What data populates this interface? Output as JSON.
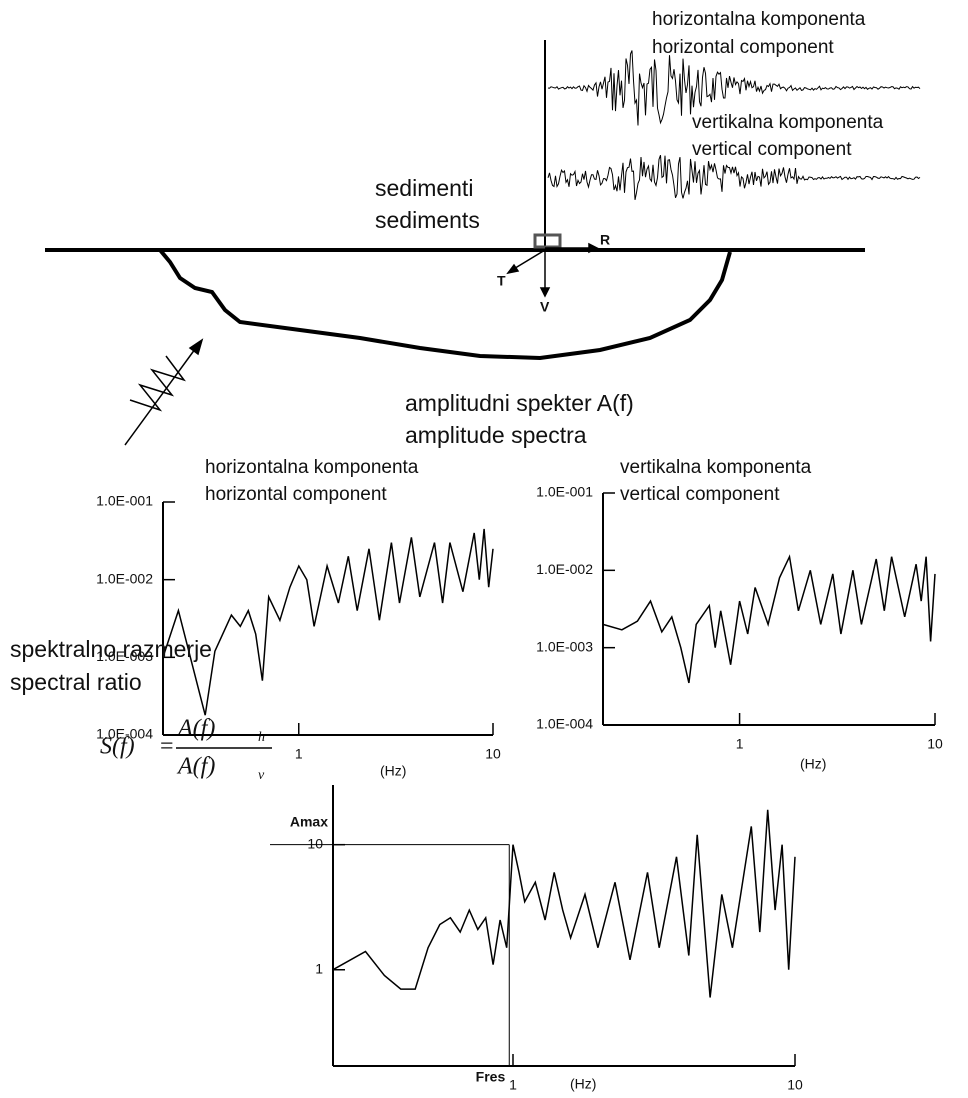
{
  "diagram": {
    "seismogram_labels": [
      [
        "horizontalna komponenta",
        "horizontal component"
      ],
      [
        "vertikalna komponenta",
        "vertical component"
      ]
    ],
    "sediment_label": [
      "sedimenti",
      "sediments"
    ],
    "axes": [
      "R",
      "T",
      "V"
    ],
    "spectra_heading": [
      "amplitudni spekter A(f)",
      "amplitude spectra"
    ],
    "formula": {
      "lhs": "S(f)",
      "eq": "=",
      "num": "A(f)",
      "num_sub": "h",
      "den": "A(f)",
      "den_sub": "v"
    }
  },
  "chart_data": [
    {
      "type": "line",
      "title": "horizontalna komponenta",
      "subtitle": "horizontal component",
      "xlabel": "(Hz)",
      "xscale": "log",
      "yscale": "log",
      "xlim": [
        0.2,
        10
      ],
      "ylim": [
        0.0001,
        0.1
      ],
      "xticks": [
        1,
        10
      ],
      "yticks": [
        {
          "value": 0.0001,
          "label": "1.0E-004"
        },
        {
          "value": 0.001,
          "label": "1.0E-003"
        },
        {
          "value": 0.01,
          "label": "1.0E-002"
        },
        {
          "value": 0.1,
          "label": "1.0E-001"
        }
      ],
      "color": "#000000",
      "x": [
        0.2,
        0.24,
        0.33,
        0.37,
        0.45,
        0.5,
        0.55,
        0.6,
        0.65,
        0.7,
        0.8,
        0.9,
        1.0,
        1.1,
        1.2,
        1.4,
        1.6,
        1.8,
        2,
        2.3,
        2.6,
        3,
        3.3,
        3.8,
        4.2,
        5,
        5.5,
        6,
        7,
        8,
        8.5,
        9,
        9.5,
        10
      ],
      "values": [
        0.001,
        0.004,
        0.00018,
        0.0012,
        0.0035,
        0.0025,
        0.004,
        0.002,
        0.0005,
        0.006,
        0.003,
        0.008,
        0.015,
        0.01,
        0.0025,
        0.015,
        0.005,
        0.02,
        0.004,
        0.025,
        0.003,
        0.03,
        0.005,
        0.035,
        0.006,
        0.03,
        0.005,
        0.03,
        0.007,
        0.04,
        0.01,
        0.045,
        0.008,
        0.025
      ]
    },
    {
      "type": "line",
      "title": "vertikalna komponenta",
      "subtitle": "vertical component",
      "xlabel": "(Hz)",
      "xscale": "log",
      "yscale": "log",
      "xlim": [
        0.2,
        10
      ],
      "ylim": [
        0.0001,
        0.1
      ],
      "xticks": [
        1,
        10
      ],
      "yticks": [
        {
          "value": 0.0001,
          "label": "1.0E-004"
        },
        {
          "value": 0.001,
          "label": "1.0E-003"
        },
        {
          "value": 0.01,
          "label": "1.0E-002"
        },
        {
          "value": 0.1,
          "label": "1.0E-001"
        }
      ],
      "color": "#000000",
      "x": [
        0.2,
        0.25,
        0.3,
        0.35,
        0.4,
        0.45,
        0.5,
        0.55,
        0.6,
        0.7,
        0.75,
        0.8,
        0.9,
        1,
        1.1,
        1.2,
        1.4,
        1.6,
        1.8,
        2,
        2.3,
        2.6,
        3,
        3.3,
        3.8,
        4.2,
        5,
        5.5,
        6,
        7,
        8,
        8.5,
        9,
        9.5,
        10
      ],
      "values": [
        0.002,
        0.0017,
        0.0022,
        0.004,
        0.0016,
        0.0025,
        0.001,
        0.00035,
        0.002,
        0.0035,
        0.001,
        0.003,
        0.0006,
        0.004,
        0.0015,
        0.006,
        0.002,
        0.008,
        0.015,
        0.003,
        0.01,
        0.002,
        0.009,
        0.0015,
        0.01,
        0.002,
        0.014,
        0.003,
        0.015,
        0.0025,
        0.012,
        0.004,
        0.015,
        0.0012,
        0.009
      ]
    },
    {
      "type": "line",
      "title": "spektralno razmerje",
      "subtitle": "spectral ratio",
      "xlabel": "(Hz)",
      "xscale": "log",
      "yscale": "log",
      "xlim": [
        0.23,
        10
      ],
      "ylim": [
        0.17,
        30
      ],
      "xticks": [
        1,
        10
      ],
      "yticks": [
        1,
        10
      ],
      "amax": {
        "label": "Amax",
        "value": 10
      },
      "fres": {
        "label": "Fres",
        "value": 0.97
      },
      "color": "#000000",
      "x": [
        0.23,
        0.3,
        0.35,
        0.4,
        0.45,
        0.5,
        0.55,
        0.6,
        0.65,
        0.7,
        0.75,
        0.8,
        0.85,
        0.9,
        0.95,
        1.0,
        1.05,
        1.1,
        1.2,
        1.3,
        1.4,
        1.5,
        1.6,
        1.8,
        2,
        2.3,
        2.6,
        3,
        3.3,
        3.8,
        4.2,
        4.5,
        5,
        5.5,
        6,
        7,
        7.5,
        8,
        8.5,
        9,
        9.5,
        10
      ],
      "values": [
        1,
        1.4,
        0.9,
        0.7,
        0.7,
        1.5,
        2.3,
        2.6,
        2,
        3,
        2.1,
        2.6,
        1.1,
        2.5,
        1.5,
        10,
        6,
        3.5,
        5,
        2.5,
        6,
        3,
        1.8,
        4,
        1.5,
        5,
        1.2,
        6,
        1.5,
        8,
        1.3,
        12,
        0.6,
        4,
        1.5,
        14,
        2,
        19,
        3,
        10,
        1,
        8
      ]
    }
  ]
}
